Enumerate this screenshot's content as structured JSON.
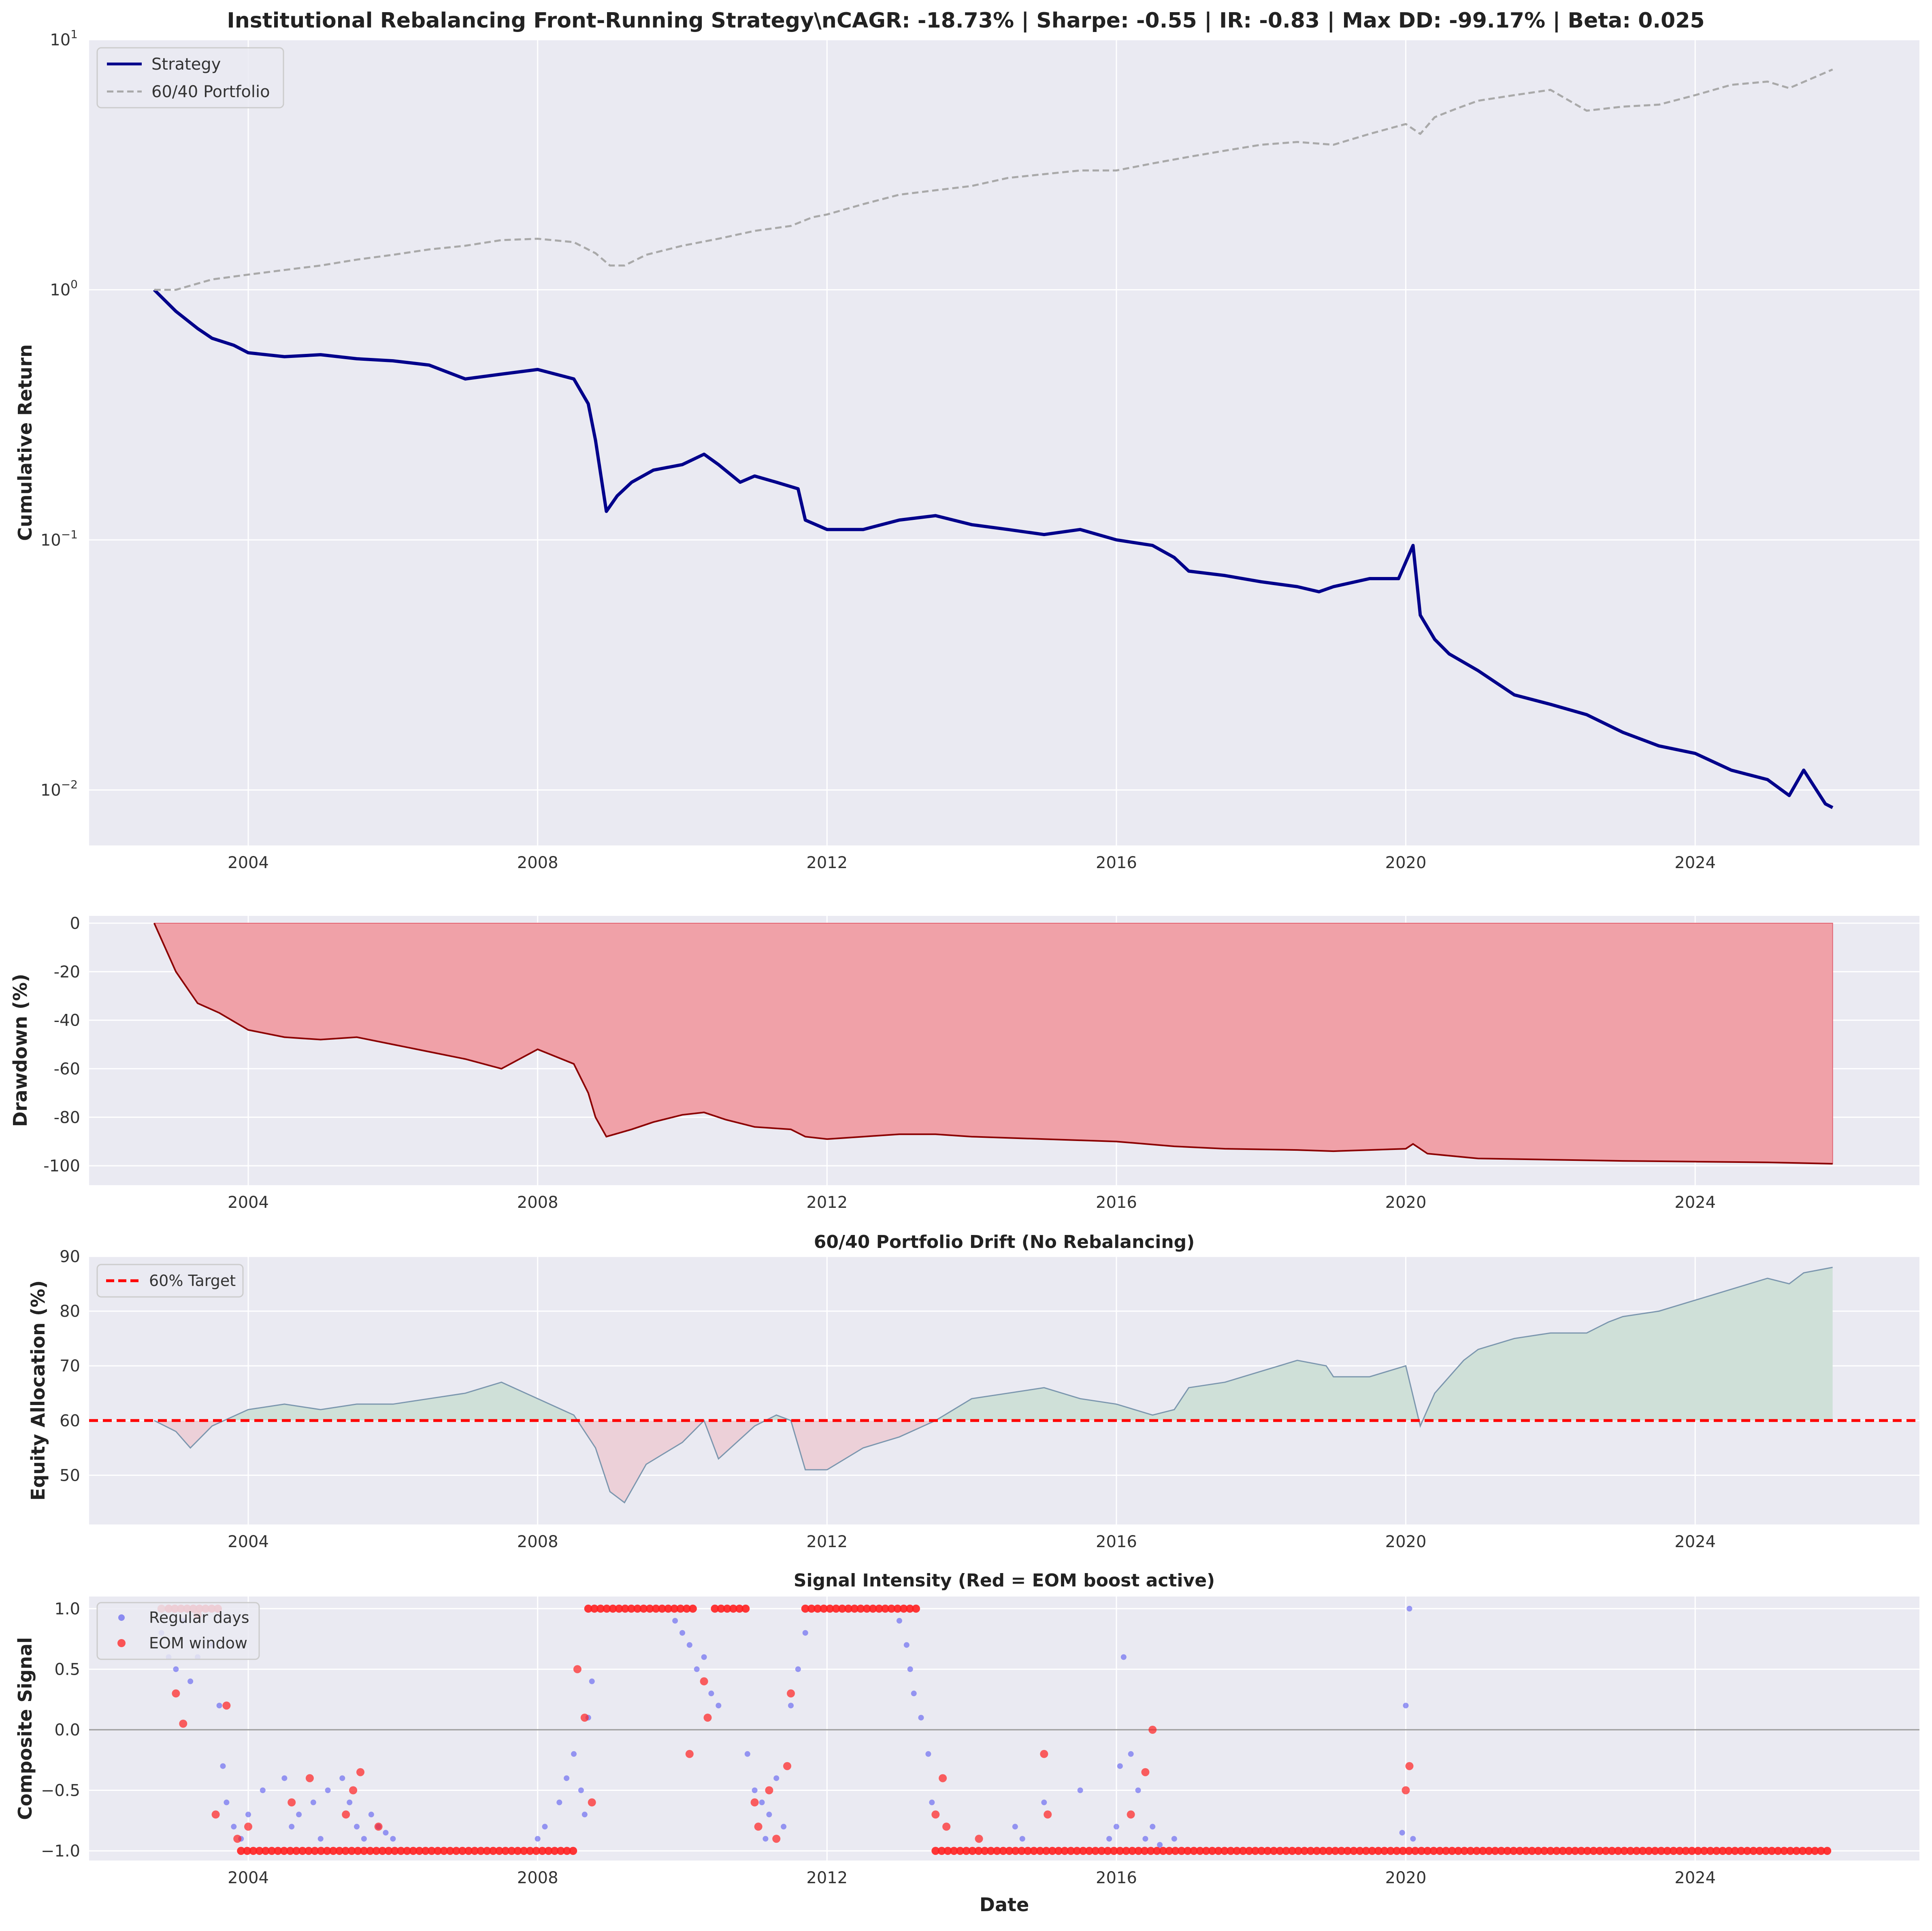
{
  "figure": {
    "main_title": "Institutional Rebalancing Front-Running Strategy\\nCAGR: -18.73% | Sharpe: -0.55 | IR: -0.83 | Max DD: -99.17% | Beta: 0.025",
    "x_ticks": [
      "2004",
      "2008",
      "2012",
      "2016",
      "2020",
      "2024"
    ],
    "x_tick_values": [
      2004,
      2008,
      2012,
      2016,
      2020,
      2024
    ],
    "xlim": [
      2001.8,
      2027.1
    ],
    "bottom_xlabel": "Date",
    "colors": {
      "panel_bg": "#eaeaf2",
      "grid": "#ffffff",
      "strategy": "#00008b",
      "benchmark": "#a9a9a9",
      "drawdown_line": "#8b0000",
      "drawdown_fill": "#f0a1a8",
      "drift_line": "#7b96ae",
      "drift_fill_above": "#cfe0d8",
      "drift_fill_below": "#ecd0d8",
      "target_line": "#ff0000",
      "regular_points": "#4a4af0",
      "eom_points": "#ff2020"
    }
  },
  "chart_data": [
    {
      "type": "line",
      "title": "",
      "ylabel": "Cumulative Return",
      "yscale": "log",
      "ylim": [
        0.006,
        10
      ],
      "y_ticks": [
        {
          "value": 10,
          "base": "10",
          "exp": "1"
        },
        {
          "value": 1,
          "base": "10",
          "exp": "0"
        },
        {
          "value": 0.1,
          "base": "10",
          "exp": "−1"
        },
        {
          "value": 0.01,
          "base": "10",
          "exp": "−2"
        }
      ],
      "grid": true,
      "legend": "top-left",
      "series": [
        {
          "name": "Strategy",
          "style": "solid",
          "x": [
            2002.7,
            2003.0,
            2003.3,
            2003.5,
            2003.8,
            2004.0,
            2004.5,
            2005.0,
            2005.5,
            2006.0,
            2006.5,
            2007.0,
            2007.5,
            2008.0,
            2008.5,
            2008.7,
            2008.8,
            2008.95,
            2009.1,
            2009.3,
            2009.6,
            2010.0,
            2010.3,
            2010.5,
            2010.8,
            2011.0,
            2011.3,
            2011.6,
            2011.7,
            2012.0,
            2012.5,
            2013.0,
            2013.5,
            2014.0,
            2014.5,
            2015.0,
            2015.5,
            2016.0,
            2016.5,
            2016.8,
            2017.0,
            2017.5,
            2018.0,
            2018.5,
            2018.8,
            2019.0,
            2019.5,
            2019.9,
            2020.1,
            2020.2,
            2020.4,
            2020.6,
            2021.0,
            2021.5,
            2022.0,
            2022.5,
            2023.0,
            2023.5,
            2024.0,
            2024.5,
            2025.0,
            2025.3,
            2025.5,
            2025.8,
            2025.9
          ],
          "values": [
            1.0,
            0.82,
            0.7,
            0.64,
            0.6,
            0.56,
            0.54,
            0.55,
            0.53,
            0.52,
            0.5,
            0.44,
            0.46,
            0.48,
            0.44,
            0.35,
            0.25,
            0.13,
            0.15,
            0.17,
            0.19,
            0.2,
            0.22,
            0.2,
            0.17,
            0.18,
            0.17,
            0.16,
            0.12,
            0.11,
            0.11,
            0.12,
            0.125,
            0.115,
            0.11,
            0.105,
            0.11,
            0.1,
            0.095,
            0.085,
            0.075,
            0.072,
            0.068,
            0.065,
            0.062,
            0.065,
            0.07,
            0.07,
            0.095,
            0.05,
            0.04,
            0.035,
            0.03,
            0.024,
            0.022,
            0.02,
            0.017,
            0.015,
            0.014,
            0.012,
            0.011,
            0.0095,
            0.012,
            0.0088,
            0.0085
          ]
        },
        {
          "name": "60/40 Portfolio",
          "style": "dashed",
          "x": [
            2002.7,
            2003.0,
            2003.5,
            2004.0,
            2004.5,
            2005.0,
            2005.5,
            2006.0,
            2006.5,
            2007.0,
            2007.5,
            2008.0,
            2008.5,
            2008.8,
            2009.0,
            2009.2,
            2009.5,
            2010.0,
            2010.5,
            2011.0,
            2011.5,
            2011.8,
            2012.0,
            2012.5,
            2013.0,
            2013.5,
            2014.0,
            2014.5,
            2015.0,
            2015.5,
            2016.0,
            2016.5,
            2017.0,
            2017.5,
            2018.0,
            2018.5,
            2019.0,
            2019.5,
            2020.0,
            2020.2,
            2020.4,
            2020.7,
            2021.0,
            2021.5,
            2022.0,
            2022.5,
            2023.0,
            2023.5,
            2024.0,
            2024.5,
            2025.0,
            2025.3,
            2025.9
          ],
          "values": [
            1.0,
            1.0,
            1.1,
            1.15,
            1.2,
            1.25,
            1.32,
            1.38,
            1.45,
            1.5,
            1.58,
            1.6,
            1.55,
            1.4,
            1.25,
            1.25,
            1.38,
            1.5,
            1.6,
            1.72,
            1.8,
            1.95,
            2.0,
            2.2,
            2.4,
            2.5,
            2.6,
            2.8,
            2.9,
            3.0,
            3.0,
            3.2,
            3.4,
            3.6,
            3.8,
            3.9,
            3.8,
            4.2,
            4.6,
            4.2,
            4.9,
            5.3,
            5.7,
            6.0,
            6.3,
            5.2,
            5.4,
            5.5,
            6.0,
            6.6,
            6.8,
            6.4,
            7.6
          ]
        }
      ]
    },
    {
      "type": "area",
      "title": "",
      "ylabel": "Drawdown (%)",
      "ylim": [
        -108,
        3
      ],
      "y_ticks": [
        0,
        -20,
        -40,
        -60,
        -80,
        -100
      ],
      "grid": true,
      "series": [
        {
          "x": [
            2002.7,
            2003.0,
            2003.3,
            2003.6,
            2004.0,
            2004.5,
            2005.0,
            2005.5,
            2006.0,
            2006.5,
            2007.0,
            2007.5,
            2008.0,
            2008.5,
            2008.7,
            2008.8,
            2008.95,
            2009.3,
            2009.6,
            2010.0,
            2010.3,
            2010.6,
            2011.0,
            2011.5,
            2011.7,
            2012.0,
            2012.5,
            2013.0,
            2013.5,
            2014.0,
            2015.0,
            2016.0,
            2016.8,
            2017.5,
            2018.5,
            2019.0,
            2019.5,
            2020.0,
            2020.1,
            2020.3,
            2021.0,
            2022.0,
            2023.0,
            2024.0,
            2025.0,
            2025.9
          ],
          "values": [
            0,
            -20,
            -33,
            -37,
            -44,
            -47,
            -48,
            -47,
            -50,
            -53,
            -56,
            -60,
            -52,
            -58,
            -70,
            -80,
            -88,
            -85,
            -82,
            -79,
            -78,
            -81,
            -84,
            -85,
            -88,
            -89,
            -88,
            -87,
            -87,
            -88,
            -89,
            -90,
            -92,
            -93,
            -93.5,
            -94,
            -93.5,
            -93,
            -91,
            -95,
            -97,
            -97.5,
            -98,
            -98.3,
            -98.6,
            -99.17
          ]
        }
      ]
    },
    {
      "type": "line",
      "title": "60/40 Portfolio Drift (No Rebalancing)",
      "ylabel": "Equity Allocation (%)",
      "ylim": [
        41,
        90
      ],
      "y_ticks": [
        50,
        60,
        70,
        80,
        90
      ],
      "grid": true,
      "legend": "top-left",
      "target": {
        "name": "60% Target",
        "value": 60
      },
      "series": [
        {
          "x": [
            2002.7,
            2003.0,
            2003.2,
            2003.5,
            2004.0,
            2004.5,
            2005.0,
            2005.5,
            2006.0,
            2006.5,
            2007.0,
            2007.5,
            2008.0,
            2008.5,
            2008.8,
            2009.0,
            2009.2,
            2009.5,
            2010.0,
            2010.3,
            2010.5,
            2011.0,
            2011.3,
            2011.5,
            2011.7,
            2012.0,
            2012.5,
            2013.0,
            2013.5,
            2014.0,
            2014.5,
            2015.0,
            2015.5,
            2016.0,
            2016.5,
            2016.8,
            2017.0,
            2017.5,
            2018.0,
            2018.5,
            2018.9,
            2019.0,
            2019.5,
            2020.0,
            2020.2,
            2020.4,
            2020.8,
            2021.0,
            2021.5,
            2022.0,
            2022.5,
            2022.8,
            2023.0,
            2023.5,
            2024.0,
            2024.5,
            2025.0,
            2025.3,
            2025.5,
            2025.9
          ],
          "values": [
            60,
            58,
            55,
            59,
            62,
            63,
            62,
            63,
            63,
            64,
            65,
            67,
            64,
            61,
            55,
            47,
            45,
            52,
            56,
            60,
            53,
            59,
            61,
            60,
            51,
            51,
            55,
            57,
            60,
            64,
            65,
            66,
            64,
            63,
            61,
            62,
            66,
            67,
            69,
            71,
            70,
            68,
            68,
            70,
            59,
            65,
            71,
            73,
            75,
            76,
            76,
            78,
            79,
            80,
            82,
            84,
            86,
            85,
            87,
            88
          ]
        }
      ]
    },
    {
      "type": "scatter",
      "title": "Signal Intensity (Red = EOM boost active)",
      "ylabel": "Composite Signal",
      "xlabel": "Date",
      "ylim": [
        -1.08,
        1.1
      ],
      "y_ticks": [
        1.0,
        0.5,
        0.0,
        -0.5,
        -1.0
      ],
      "y_tick_labels": [
        "1.0",
        "0.5",
        "0.0",
        "−0.5",
        "−1.0"
      ],
      "grid": true,
      "legend": "top-left",
      "series": [
        {
          "name": "Regular days",
          "x": [
            2002.8,
            2002.9,
            2003.0,
            2003.1,
            2003.2,
            2003.3,
            2003.5,
            2003.6,
            2003.65,
            2003.7,
            2003.8,
            2003.9,
            2004.0,
            2004.2,
            2004.5,
            2004.6,
            2004.7,
            2004.9,
            2005.0,
            2005.1,
            2005.3,
            2005.4,
            2005.5,
            2005.6,
            2005.7,
            2005.8,
            2005.9,
            2006.0,
            2008.0,
            2008.1,
            2008.3,
            2008.4,
            2008.5,
            2008.6,
            2008.65,
            2008.7,
            2008.75,
            2009.9,
            2010.0,
            2010.1,
            2010.2,
            2010.3,
            2010.4,
            2010.5,
            2010.9,
            2011.0,
            2011.1,
            2011.15,
            2011.2,
            2011.3,
            2011.4,
            2011.5,
            2011.6,
            2011.7,
            2013.0,
            2013.1,
            2013.15,
            2013.2,
            2013.3,
            2013.4,
            2013.45,
            2014.6,
            2014.7,
            2015.0,
            2015.5,
            2015.9,
            2016.0,
            2016.05,
            2016.1,
            2016.2,
            2016.3,
            2016.4,
            2016.5,
            2016.6,
            2016.8,
            2019.95,
            2020.0,
            2020.05,
            2020.1
          ],
          "values": [
            0.8,
            0.6,
            0.5,
            0.9,
            0.4,
            0.6,
            0.7,
            0.2,
            -0.3,
            -0.6,
            -0.8,
            -0.9,
            -0.7,
            -0.5,
            -0.4,
            -0.8,
            -0.7,
            -0.6,
            -0.9,
            -0.5,
            -0.4,
            -0.6,
            -0.8,
            -0.9,
            -0.7,
            -0.8,
            -0.85,
            -0.9,
            -0.9,
            -0.8,
            -0.6,
            -0.4,
            -0.2,
            -0.5,
            -0.7,
            0.1,
            0.4,
            0.9,
            0.8,
            0.7,
            0.5,
            0.6,
            0.3,
            0.2,
            -0.2,
            -0.5,
            -0.6,
            -0.9,
            -0.7,
            -0.4,
            -0.8,
            0.2,
            0.5,
            0.8,
            0.9,
            0.7,
            0.5,
            0.3,
            0.1,
            -0.2,
            -0.6,
            -0.8,
            -0.9,
            -0.6,
            -0.5,
            -0.9,
            -0.8,
            -0.3,
            0.6,
            -0.2,
            -0.5,
            -0.9,
            -0.8,
            -0.95,
            -0.9,
            -0.85,
            0.2,
            1.0,
            -0.9
          ]
        },
        {
          "name": "EOM window",
          "x": [
            2002.8,
            2003.0,
            2003.1,
            2003.3,
            2003.55,
            2003.7,
            2003.85,
            2004.0,
            2004.6,
            2004.85,
            2005.35,
            2005.45,
            2005.55,
            2005.8,
            2008.55,
            2008.65,
            2008.75,
            2010.1,
            2010.3,
            2010.35,
            2011.0,
            2011.05,
            2011.2,
            2011.3,
            2011.45,
            2011.5,
            2013.5,
            2013.6,
            2013.65,
            2014.1,
            2015.0,
            2015.05,
            2016.2,
            2016.4,
            2016.5,
            2020.0,
            2020.05
          ],
          "values": [
            1.0,
            0.3,
            0.05,
            0.95,
            -0.7,
            0.2,
            -0.9,
            -0.8,
            -0.6,
            -0.4,
            -0.7,
            -0.5,
            -0.35,
            -0.8,
            0.5,
            0.1,
            -0.6,
            -0.2,
            0.4,
            0.1,
            -0.6,
            -0.8,
            -0.5,
            -0.9,
            -0.3,
            0.3,
            -0.7,
            -0.4,
            -0.8,
            -0.9,
            -0.2,
            -0.7,
            -0.7,
            -0.35,
            0.0,
            -0.5,
            -0.3
          ]
        }
      ]
    }
  ]
}
